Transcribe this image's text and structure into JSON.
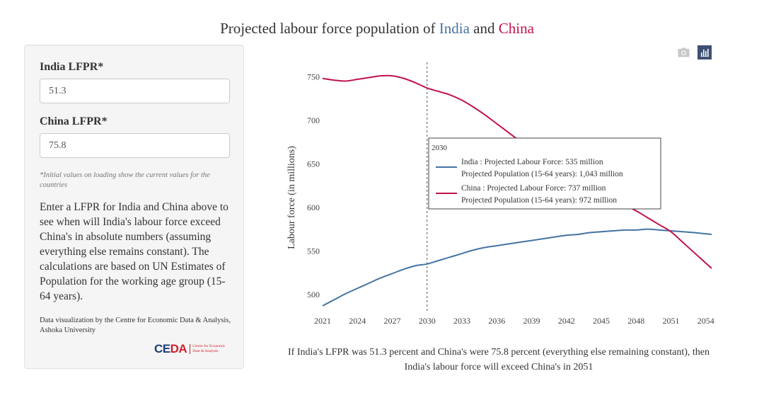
{
  "title": {
    "prefix": "Projected labour force population of ",
    "india": "India",
    "middle": " and ",
    "china": "China"
  },
  "panel": {
    "india_label": "India LFPR*",
    "india_value": "51.3",
    "china_label": "China LFPR*",
    "china_value": "75.8",
    "note": "*Initial values on loading show the current values for the countries",
    "description": "Enter a LFPR for India and China above to see when will India's labour force exceed China's in absolute numbers (assuming everything else remains constant). The calculations are based on UN Estimates of Population for the working age group (15-64 years).",
    "credit": "Data visualization by the Centre for Economic Data & Analysis, Ashoka University",
    "logo_mark_a": "CE",
    "logo_mark_b": "DA",
    "logo_text_1": "Centre for Economic",
    "logo_text_2": "Data & Analysis"
  },
  "toolbar": {
    "camera_icon": "camera-icon",
    "chart_icon": "bar-chart-icon"
  },
  "colors": {
    "india": "#4574a3",
    "china": "#c0134a"
  },
  "chart_data": {
    "type": "line",
    "ylabel": "Labour force (in millions)",
    "xlabel": "",
    "xlim": [
      2021,
      2054.5
    ],
    "ylim": [
      482,
      760
    ],
    "xticks": [
      2021,
      2024,
      2027,
      2030,
      2033,
      2036,
      2039,
      2042,
      2045,
      2048,
      2051,
      2054
    ],
    "yticks": [
      500,
      550,
      600,
      650,
      700,
      750
    ],
    "grid": false,
    "marker_year": 2030,
    "series": [
      {
        "name": "India",
        "color": "#4574a3",
        "x": [
          2021,
          2022,
          2023,
          2024,
          2025,
          2026,
          2027,
          2028,
          2029,
          2030,
          2031,
          2032,
          2033,
          2034,
          2035,
          2036,
          2037,
          2038,
          2039,
          2040,
          2041,
          2042,
          2043,
          2044,
          2045,
          2046,
          2047,
          2048,
          2049,
          2050,
          2051,
          2052,
          2053,
          2054.5
        ],
        "values": [
          487,
          494,
          501,
          507,
          513,
          519,
          524,
          529,
          533,
          535,
          539,
          543,
          547,
          551,
          554,
          556,
          558,
          560,
          562,
          564,
          566,
          568,
          569,
          571,
          572,
          573,
          574,
          574,
          575,
          574,
          573,
          572,
          571,
          569
        ]
      },
      {
        "name": "China",
        "color": "#c0134a",
        "x": [
          2021,
          2022,
          2023,
          2024,
          2025,
          2026,
          2027,
          2028,
          2029,
          2030,
          2031,
          2032,
          2033,
          2034,
          2035,
          2036,
          2037,
          2038,
          2039,
          2040,
          2041,
          2042,
          2043,
          2044,
          2045,
          2046,
          2047,
          2048,
          2049,
          2050,
          2051,
          2052,
          2053,
          2054.5
        ],
        "values": [
          748,
          746,
          745,
          747,
          749,
          751,
          751,
          748,
          743,
          737,
          733,
          729,
          723,
          715,
          706,
          696,
          686,
          676,
          667,
          659,
          651,
          644,
          636,
          628,
          619,
          611,
          603,
          596,
          588,
          580,
          572,
          560,
          548,
          530
        ]
      }
    ],
    "tooltip": {
      "year": "2030",
      "india_line1": "India : Projected Labour Force: 535 million",
      "india_line2": "Projected Population (15-64 years): 1,043 million",
      "china_line1": "China : Projected Labour Force: 737 million",
      "china_line2": "Projected Population (15-64 years): 972 million"
    }
  },
  "caption": "If India's LFPR was 51.3 percent and China's were 75.8 percent (everything else remaining constant), then India's labour force will exceed China's in 2051"
}
